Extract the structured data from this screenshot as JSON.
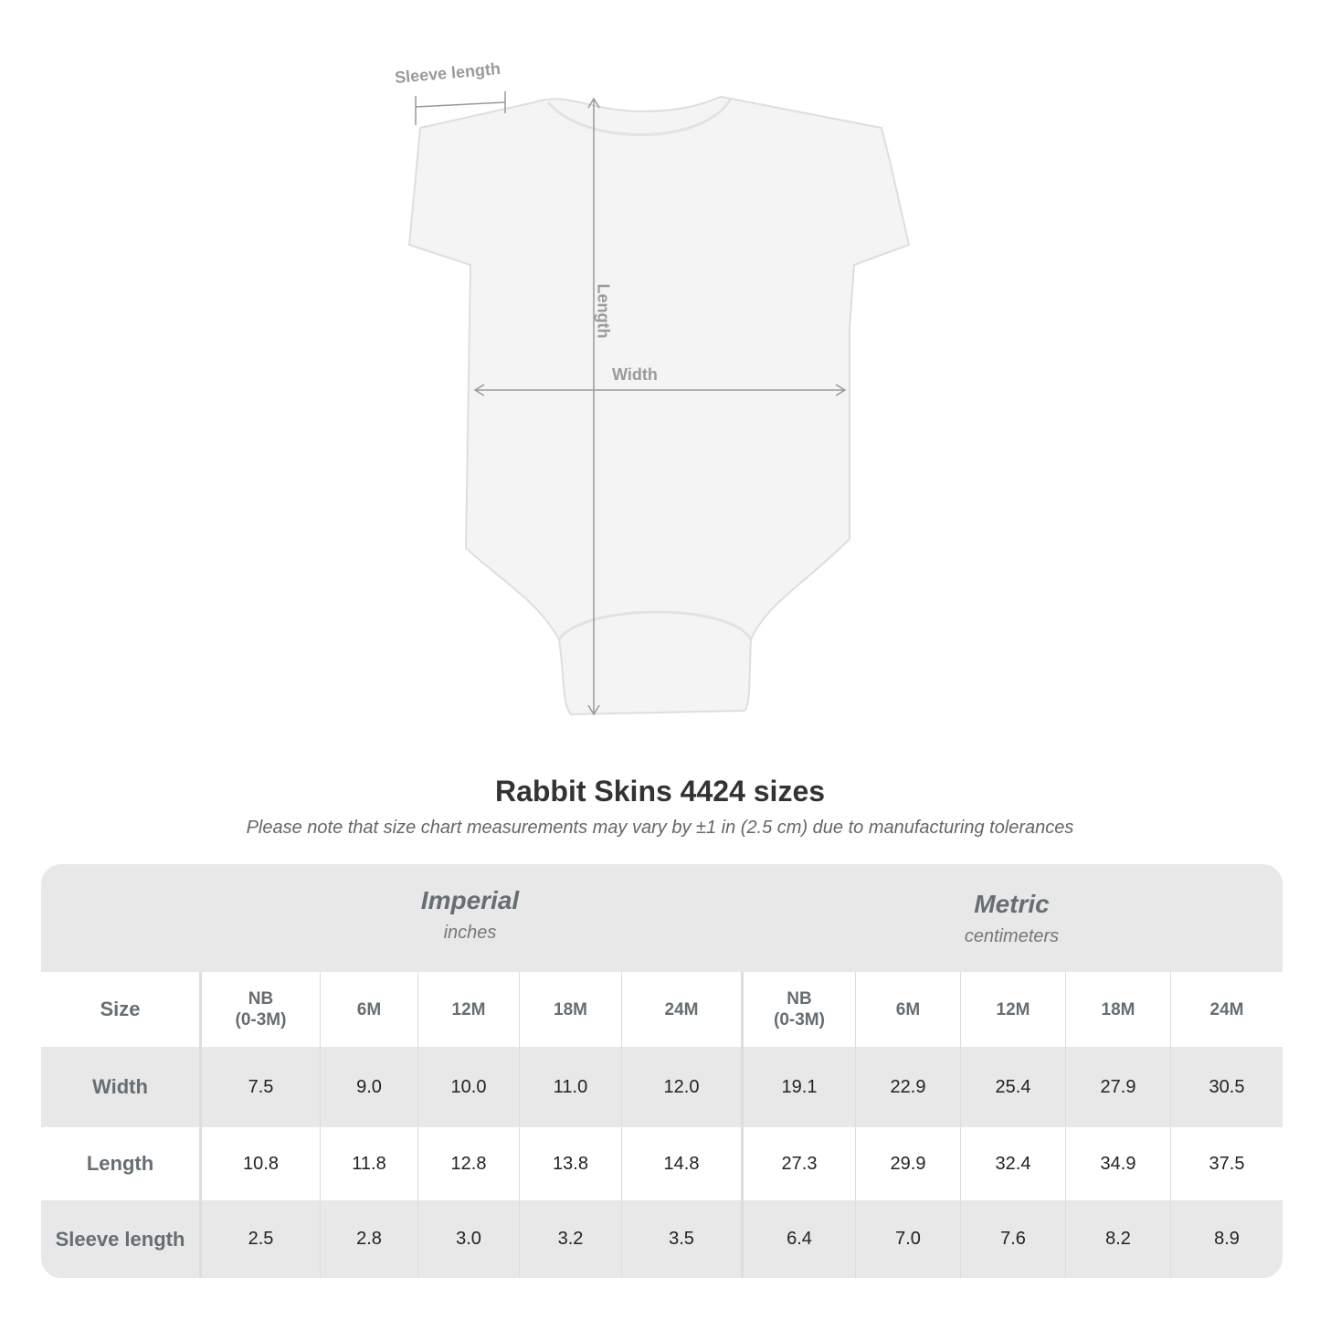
{
  "diagram": {
    "sleeve_label": "Sleeve length",
    "length_label": "Length",
    "width_label": "Width"
  },
  "title": "Rabbit Skins 4424 sizes",
  "subtitle": "Please note that size chart measurements may vary by ±1 in (2.5 cm) due to manufacturing tolerances",
  "imperial": {
    "title": "Imperial",
    "unit": "inches"
  },
  "metric": {
    "title": "Metric",
    "unit": "centimeters"
  },
  "size_label": "Size",
  "sizes": [
    "NB\n(0-3M)",
    "6M",
    "12M",
    "18M",
    "24M",
    "NB\n(0-3M)",
    "6M",
    "12M",
    "18M",
    "24M"
  ],
  "rows": [
    {
      "label": "Width",
      "values": [
        "7.5",
        "9.0",
        "10.0",
        "11.0",
        "12.0",
        "19.1",
        "22.9",
        "25.4",
        "27.9",
        "30.5"
      ]
    },
    {
      "label": "Length",
      "values": [
        "10.8",
        "11.8",
        "12.8",
        "13.8",
        "14.8",
        "27.3",
        "29.9",
        "32.4",
        "34.9",
        "37.5"
      ]
    },
    {
      "label": "Sleeve length",
      "values": [
        "2.5",
        "2.8",
        "3.0",
        "3.2",
        "3.5",
        "6.4",
        "7.0",
        "7.6",
        "8.2",
        "8.9"
      ]
    }
  ]
}
